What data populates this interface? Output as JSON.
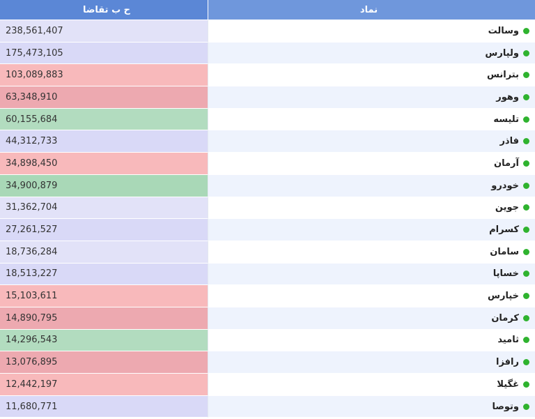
{
  "header": {
    "symbol_label": "نماد",
    "value_label": "ح ب تقاضا"
  },
  "colors": {
    "light_purple": "#e2e2f8",
    "purple": "#d9d9f7",
    "red": "#f8b9bb",
    "dark_red": "#eda9b0",
    "green": "#b2dcbf",
    "dot": "#2fb32f"
  },
  "rows": [
    {
      "symbol": "وسالت",
      "value": "238,561,407",
      "color": "#e2e2f8"
    },
    {
      "symbol": "ولپارس",
      "value": "175,473,105",
      "color": "#d9d9f7"
    },
    {
      "symbol": "بترانس",
      "value": "103,089,883",
      "color": "#f8b9bb"
    },
    {
      "symbol": "وهور",
      "value": "63,348,910",
      "color": "#eda9b0"
    },
    {
      "symbol": "تلیسه",
      "value": "60,155,684",
      "color": "#b2dcbf"
    },
    {
      "symbol": "فاذر",
      "value": "44,312,733",
      "color": "#d9d9f7"
    },
    {
      "symbol": "آرمان",
      "value": "34,898,450",
      "color": "#f8b9bb"
    },
    {
      "symbol": "خودرو",
      "value": "34,900,879",
      "color": "#a9d8b7"
    },
    {
      "symbol": "جوین",
      "value": "31,362,704",
      "color": "#e2e2f8"
    },
    {
      "symbol": "کسرام",
      "value": "27,261,527",
      "color": "#d9d9f7"
    },
    {
      "symbol": "سامان",
      "value": "18,736,284",
      "color": "#e2e2f8"
    },
    {
      "symbol": "خساپا",
      "value": "18,513,227",
      "color": "#d9d9f7"
    },
    {
      "symbol": "خپارس",
      "value": "15,103,611",
      "color": "#f8b9bb"
    },
    {
      "symbol": "کرمان",
      "value": "14,890,795",
      "color": "#eda9b0"
    },
    {
      "symbol": "ثامید",
      "value": "14,296,543",
      "color": "#b2dcbf"
    },
    {
      "symbol": "رافزا",
      "value": "13,076,895",
      "color": "#eda9b0"
    },
    {
      "symbol": "غگیلا",
      "value": "12,442,197",
      "color": "#f8b9bb"
    },
    {
      "symbol": "وتوصا",
      "value": "11,680,771",
      "color": "#d9d9f7"
    }
  ]
}
